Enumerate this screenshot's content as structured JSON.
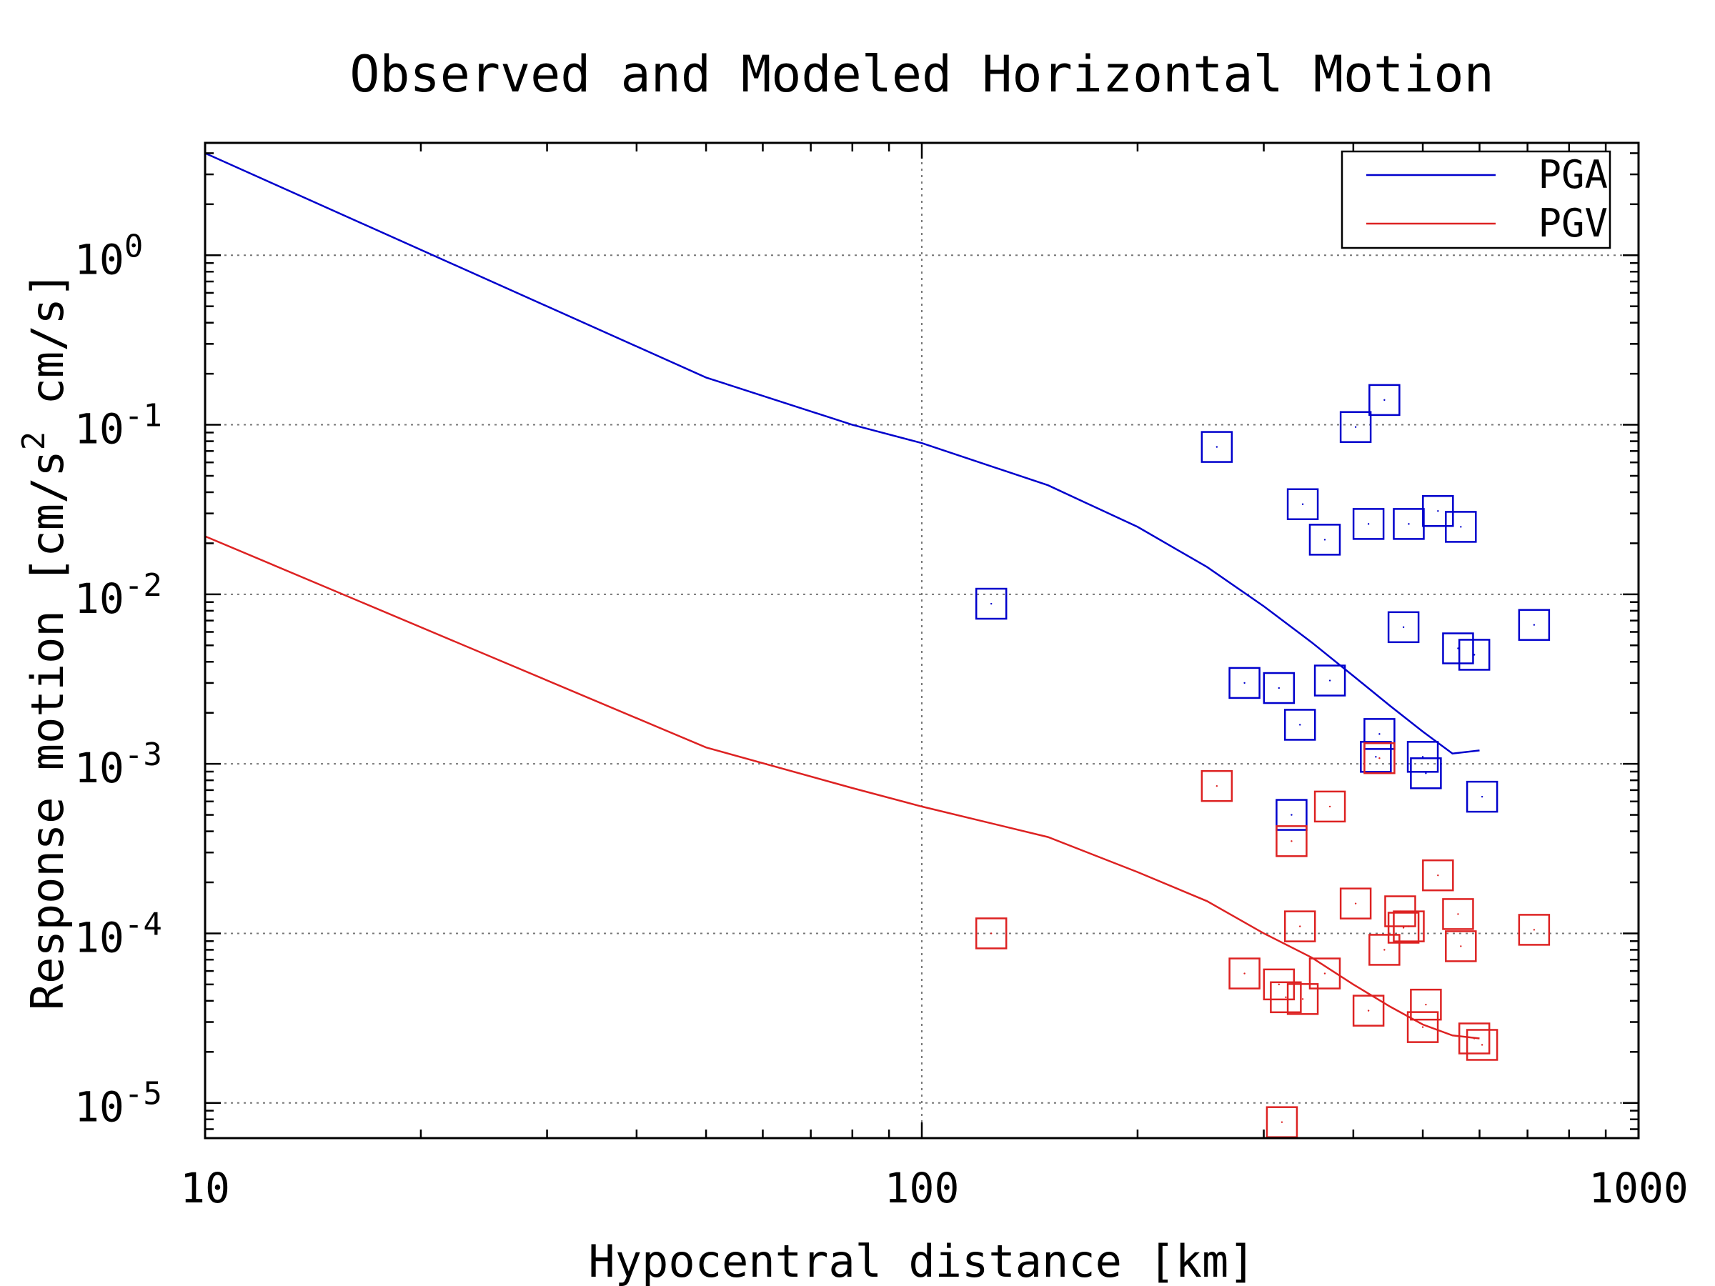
{
  "chart_data": {
    "type": "scatter",
    "title": "Observed and Modeled Horizontal Motion",
    "xlabel": "Hypocentral distance [km]",
    "ylabel": "Response motion [cm/s² cm/s]",
    "ylabel_parts": {
      "pre": "Response motion [cm/s",
      "sup": "2",
      "post": " cm/s]"
    },
    "xscale": "log",
    "yscale": "log",
    "xlim": [
      10,
      1000
    ],
    "ylim": [
      6.2e-06,
      4.6
    ],
    "x_ticks": [
      {
        "value": 10,
        "label": "10"
      },
      {
        "value": 100,
        "label": "100"
      },
      {
        "value": 1000,
        "label": "1000"
      }
    ],
    "y_ticks": [
      {
        "value": 1,
        "base": "10",
        "exp": "0"
      },
      {
        "value": 0.1,
        "base": "10",
        "exp": "-1"
      },
      {
        "value": 0.01,
        "base": "10",
        "exp": "-2"
      },
      {
        "value": 0.001,
        "base": "10",
        "exp": "-3"
      },
      {
        "value": 0.0001,
        "base": "10",
        "exp": "-4"
      },
      {
        "value": 1e-05,
        "base": "10",
        "exp": "-5"
      }
    ],
    "grid": true,
    "legend_position": "top-right",
    "series": [
      {
        "name": "PGA",
        "color": "#0000cc",
        "model_line": {
          "x": [
            10,
            50,
            80,
            100,
            150,
            200,
            250,
            300,
            350,
            400,
            450,
            500,
            550,
            600
          ],
          "y": [
            4.0,
            0.19,
            0.1,
            0.078,
            0.044,
            0.025,
            0.0145,
            0.0085,
            0.0052,
            0.0033,
            0.0022,
            0.00155,
            0.00115,
            0.0012
          ]
        },
        "observed": {
          "x": [
            125,
            258,
            282,
            315,
            328,
            337,
            340,
            365,
            371,
            403,
            420,
            430,
            435,
            442,
            470,
            478,
            500,
            505,
            525,
            560,
            565,
            590,
            605,
            715
          ],
          "y": [
            0.0088,
            0.074,
            0.003,
            0.0028,
            0.0005,
            0.0017,
            0.034,
            0.021,
            0.0031,
            0.097,
            0.026,
            0.0011,
            0.0015,
            0.14,
            0.0064,
            0.026,
            0.0011,
            0.00088,
            0.031,
            0.0048,
            0.025,
            0.0044,
            0.00064,
            0.0066
          ]
        }
      },
      {
        "name": "PGV",
        "color": "#dd2222",
        "model_line": {
          "x": [
            10,
            50,
            80,
            100,
            150,
            200,
            250,
            300,
            350,
            400,
            450,
            500,
            550,
            600
          ],
          "y": [
            0.022,
            0.00125,
            0.00072,
            0.00056,
            0.00037,
            0.00023,
            0.000155,
            0.0001,
            7.2e-05,
            5e-05,
            3.7e-05,
            2.9e-05,
            2.5e-05,
            2.4e-05
          ]
        },
        "observed": {
          "x": [
            125,
            258,
            282,
            315,
            318,
            322,
            328,
            337,
            340,
            365,
            371,
            403,
            420,
            435,
            442,
            465,
            470,
            478,
            500,
            505,
            525,
            560,
            565,
            590,
            605,
            715
          ],
          "y": [
            0.0001,
            0.00074,
            5.8e-05,
            5e-05,
            7.7e-06,
            4.2e-05,
            0.00035,
            0.00011,
            4.1e-05,
            5.8e-05,
            0.00056,
            0.00015,
            3.5e-05,
            0.00108,
            8e-05,
            0.000135,
            0.000108,
            0.00011,
            2.8e-05,
            3.8e-05,
            0.00022,
            0.00013,
            8.4e-05,
            2.4e-05,
            2.2e-05,
            0.000105
          ]
        }
      }
    ]
  }
}
